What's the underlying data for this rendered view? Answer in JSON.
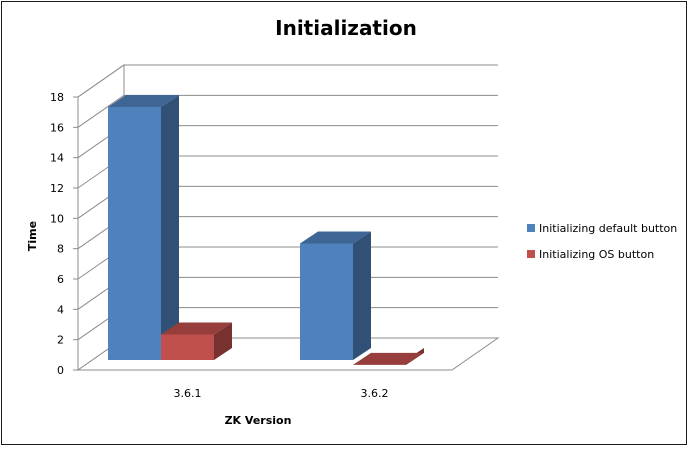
{
  "chart_data": {
    "type": "bar",
    "title": "Initialization",
    "xlabel": "ZK Version",
    "ylabel": "Time",
    "categories": [
      "3.6.1",
      "3.6.2"
    ],
    "series": [
      {
        "name": "Initializing default button",
        "values": [
          18,
          9
        ],
        "color": "#4F81BD"
      },
      {
        "name": "Initializing OS button",
        "values": [
          3,
          1
        ],
        "color": "#C0504D"
      }
    ],
    "ylim": [
      0,
      18
    ],
    "yticks": [
      "0",
      "2",
      "4",
      "6",
      "8",
      "10",
      "12",
      "14",
      "16",
      "18"
    ],
    "grid": true,
    "legend_position": "right",
    "style": "3d-clustered-column"
  }
}
